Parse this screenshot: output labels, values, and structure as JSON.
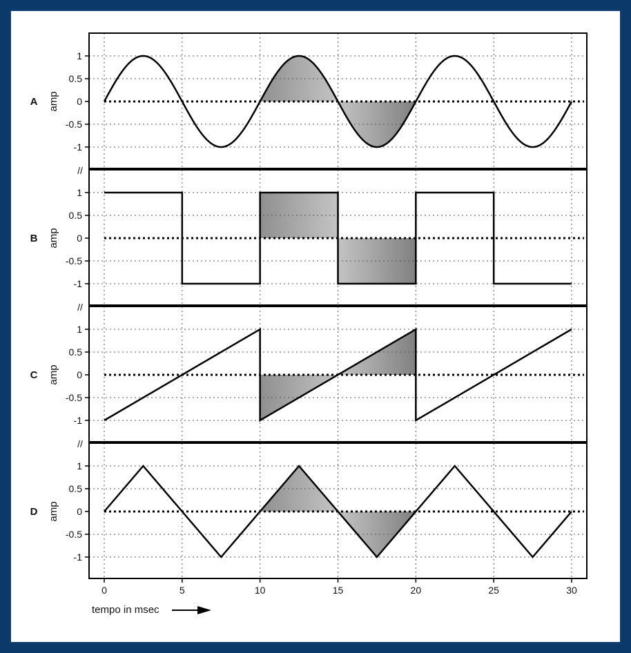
{
  "chart_data": {
    "type": "line",
    "title": "",
    "xlabel": "tempo in msec",
    "x_ticks": [
      0,
      5,
      10,
      15,
      20,
      25,
      30
    ],
    "xlim": [
      0,
      30
    ],
    "grid": true,
    "colors": {
      "line": "#000000",
      "grid": "#555555",
      "shade": "#9a9a9a",
      "background": "#0b3a6a",
      "panel": "#ffffff"
    },
    "shaded_interval": [
      10,
      20
    ],
    "break_mark": "//",
    "panels": [
      {
        "label": "A",
        "ylabel": "amp",
        "waveform": "sine",
        "period": 10,
        "ylim": [
          -1,
          1
        ],
        "y_ticks": [
          1,
          0.5,
          0,
          -0.5,
          -1
        ],
        "y_tick_labels": [
          "1",
          "0.5",
          "0",
          "-0.5",
          "-1"
        ],
        "x": [
          0,
          2.5,
          5,
          7.5,
          10,
          12.5,
          15,
          17.5,
          20,
          22.5,
          25,
          27.5,
          30
        ],
        "y": [
          0,
          1,
          0,
          -1,
          0,
          1,
          0,
          -1,
          0,
          1,
          0,
          -1,
          0
        ]
      },
      {
        "label": "B",
        "ylabel": "amp",
        "waveform": "square",
        "period": 10,
        "ylim": [
          -1,
          1
        ],
        "y_ticks": [
          1,
          0.5,
          0,
          -0.5,
          -1
        ],
        "y_tick_labels": [
          "1",
          "0.5",
          "0",
          "-0.5",
          "-1"
        ],
        "x": [
          0,
          5,
          5,
          10,
          10,
          15,
          15,
          20,
          20,
          25,
          25,
          30
        ],
        "y": [
          1,
          1,
          -1,
          -1,
          1,
          1,
          -1,
          -1,
          1,
          1,
          -1,
          -1
        ]
      },
      {
        "label": "C",
        "ylabel": "amp",
        "waveform": "sawtooth",
        "period": 10,
        "ylim": [
          -1,
          1
        ],
        "y_ticks": [
          1,
          0.5,
          0,
          -0.5,
          -1
        ],
        "y_tick_labels": [
          "1",
          "0.5",
          "0",
          "-0.5",
          "-1"
        ],
        "x": [
          0,
          10,
          10,
          20,
          20,
          30
        ],
        "y": [
          -1,
          1,
          -1,
          1,
          -1,
          1
        ]
      },
      {
        "label": "D",
        "ylabel": "amp",
        "waveform": "triangle",
        "period": 10,
        "ylim": [
          -1,
          1
        ],
        "y_ticks": [
          1,
          0.5,
          0,
          -0.5,
          -1
        ],
        "y_tick_labels": [
          "1",
          "0.5",
          "0",
          "-0.5",
          "-1"
        ],
        "x": [
          0,
          2.5,
          7.5,
          12.5,
          17.5,
          22.5,
          27.5,
          30
        ],
        "y": [
          0,
          1,
          -1,
          1,
          -1,
          1,
          -1,
          0
        ]
      }
    ]
  }
}
